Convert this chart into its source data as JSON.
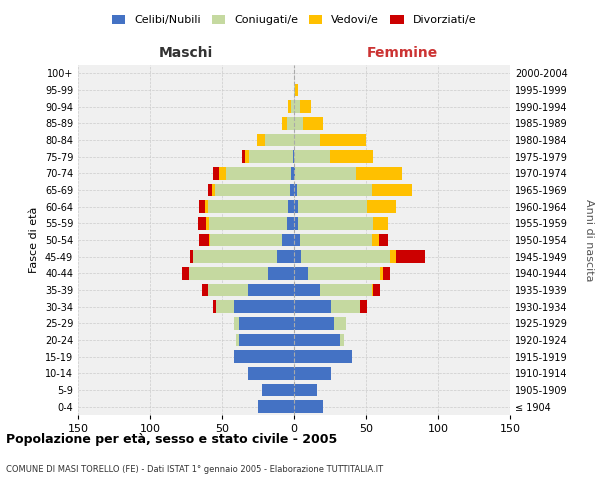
{
  "age_groups": [
    "100+",
    "95-99",
    "90-94",
    "85-89",
    "80-84",
    "75-79",
    "70-74",
    "65-69",
    "60-64",
    "55-59",
    "50-54",
    "45-49",
    "40-44",
    "35-39",
    "30-34",
    "25-29",
    "20-24",
    "15-19",
    "10-14",
    "5-9",
    "0-4"
  ],
  "birth_years": [
    "≤ 1904",
    "1905-1909",
    "1910-1914",
    "1915-1919",
    "1920-1924",
    "1925-1929",
    "1930-1934",
    "1935-1939",
    "1940-1944",
    "1945-1949",
    "1950-1954",
    "1955-1959",
    "1960-1964",
    "1965-1969",
    "1970-1974",
    "1975-1979",
    "1980-1984",
    "1985-1989",
    "1990-1994",
    "1995-1999",
    "2000-2004"
  ],
  "males": {
    "celibe": [
      0,
      0,
      0,
      0,
      0,
      1,
      2,
      3,
      4,
      5,
      8,
      12,
      18,
      32,
      42,
      38,
      38,
      42,
      32,
      22,
      25
    ],
    "coniugato": [
      0,
      0,
      2,
      5,
      20,
      30,
      45,
      52,
      56,
      54,
      50,
      58,
      55,
      28,
      12,
      4,
      2,
      0,
      0,
      0,
      0
    ],
    "vedovo": [
      0,
      0,
      2,
      3,
      6,
      3,
      5,
      2,
      2,
      2,
      1,
      0,
      0,
      0,
      0,
      0,
      0,
      0,
      0,
      0,
      0
    ],
    "divorziato": [
      0,
      0,
      0,
      0,
      0,
      2,
      4,
      3,
      4,
      6,
      7,
      2,
      5,
      4,
      2,
      0,
      0,
      0,
      0,
      0,
      0
    ]
  },
  "females": {
    "celibe": [
      0,
      0,
      0,
      0,
      0,
      0,
      1,
      2,
      3,
      3,
      4,
      5,
      10,
      18,
      26,
      28,
      32,
      40,
      26,
      16,
      20
    ],
    "coniugata": [
      0,
      1,
      4,
      6,
      18,
      25,
      42,
      52,
      48,
      52,
      50,
      62,
      50,
      36,
      20,
      8,
      3,
      0,
      0,
      0,
      0
    ],
    "vedova": [
      0,
      2,
      8,
      14,
      32,
      30,
      32,
      28,
      20,
      10,
      5,
      4,
      2,
      1,
      0,
      0,
      0,
      0,
      0,
      0,
      0
    ],
    "divorziata": [
      0,
      0,
      0,
      0,
      0,
      0,
      0,
      0,
      0,
      0,
      6,
      20,
      5,
      5,
      5,
      0,
      0,
      0,
      0,
      0,
      0
    ]
  },
  "colors": {
    "celibe": "#4472c4",
    "coniugato": "#c5d9a0",
    "vedovo": "#ffc000",
    "divorziato": "#cc0000"
  },
  "xlim": 150,
  "title": "Popolazione per età, sesso e stato civile - 2005",
  "subtitle": "COMUNE DI MASI TORELLO (FE) - Dati ISTAT 1° gennaio 2005 - Elaborazione TUTTITALIA.IT",
  "ylabel_left": "Fasce di età",
  "ylabel_right": "Anni di nascita",
  "xlabel_maschi": "Maschi",
  "xlabel_femmine": "Femmine",
  "legend_labels": [
    "Celibi/Nubili",
    "Coniugati/e",
    "Vedovi/e",
    "Divorziati/e"
  ],
  "bg_color": "#f0f0f0",
  "grid_color": "#cccccc"
}
